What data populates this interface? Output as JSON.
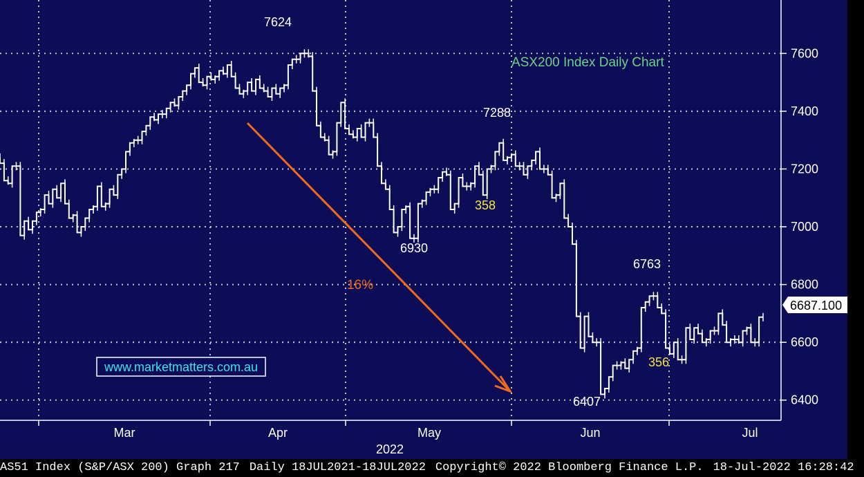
{
  "chart_data": {
    "type": "ohlc",
    "title": "ASX200 Index Daily Chart",
    "year_label": "2022",
    "x_tick_labels": [
      "Mar",
      "Apr",
      "May",
      "Jun",
      "Jul"
    ],
    "y_tick_labels": [
      "6400",
      "6600",
      "6800",
      "7000",
      "7200",
      "7400",
      "7600"
    ],
    "ylim": [
      6330,
      7785
    ],
    "last_price": "6687.100",
    "grid": true,
    "prices": [
      7240,
      7220,
      7160,
      7150,
      7210,
      7210,
      6970,
      7020,
      6990,
      7020,
      7050,
      7060,
      7110,
      7080,
      7130,
      7100,
      7150,
      7080,
      7030,
      7040,
      6980,
      7000,
      7030,
      7060,
      7070,
      7140,
      7070,
      7080,
      7130,
      7110,
      7180,
      7200,
      7260,
      7290,
      7300,
      7300,
      7330,
      7350,
      7380,
      7370,
      7390,
      7390,
      7410,
      7430,
      7420,
      7450,
      7470,
      7490,
      7530,
      7550,
      7500,
      7490,
      7520,
      7510,
      7520,
      7540,
      7530,
      7560,
      7520,
      7480,
      7460,
      7470,
      7500,
      7470,
      7510,
      7480,
      7470,
      7450,
      7480,
      7460,
      7480,
      7490,
      7560,
      7580,
      7580,
      7600,
      7600,
      7590,
      7470,
      7350,
      7310,
      7300,
      7250,
      7260,
      7360,
      7430,
      7340,
      7320,
      7310,
      7340,
      7310,
      7360,
      7360,
      7310,
      7210,
      7150,
      7130,
      7060,
      6980,
      7000,
      7060,
      7070,
      6960,
      6960,
      7080,
      7090,
      7120,
      7130,
      7130,
      7170,
      7190,
      7180,
      7060,
      7080,
      7170,
      7140,
      7140,
      7150,
      7210,
      7180,
      7110,
      7200,
      7210,
      7260,
      7290,
      7230,
      7240,
      7250,
      7210,
      7210,
      7180,
      7210,
      7230,
      7260,
      7200,
      7200,
      7180,
      7100,
      7110,
      7150,
      7030,
      7000,
      6940,
      6690,
      6580,
      6690,
      6620,
      6600,
      6600,
      6420,
      6440,
      6480,
      6520,
      6520,
      6530,
      6510,
      6540,
      6570,
      6580,
      6720,
      6740,
      6760,
      6760,
      6720,
      6700,
      6580,
      6560,
      6600,
      6540,
      6540,
      6650,
      6610,
      6650,
      6630,
      6600,
      6610,
      6640,
      6640,
      6700,
      6660,
      6600,
      6610,
      6610,
      6600,
      6640,
      6650,
      6600,
      6600,
      6687
    ]
  },
  "annotations": {
    "peak_label": "7624",
    "high2_label": "7288",
    "low1_label": "6930",
    "swing1_label": "358",
    "pct_label": "16%",
    "high3_label": "6763",
    "low2_label": "6407",
    "swing2_label": "356"
  },
  "watermark": "www.marketmatters.com.au",
  "footer": {
    "ticker": "AS51 Index (S&P/ASX 200) Graph 217",
    "range": "Daily 18JUL2021-18JUL2022",
    "copyright": "Copyright© 2022 Bloomberg Finance L.P.",
    "timestamp": "18-Jul-2022 16:28:42"
  },
  "colors": {
    "background": "#0d0d57",
    "grid": "#c8c8c8",
    "price_line": "#ffffff",
    "title": "#6fd08a",
    "swing_label": "#f5e642",
    "arrow": "#f06a1c",
    "watermark": "#40e0f0"
  }
}
